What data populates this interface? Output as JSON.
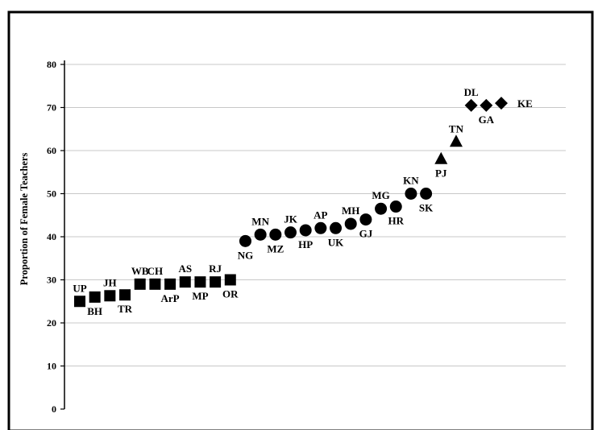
{
  "chart_data": {
    "type": "scatter",
    "title": "",
    "xlabel": "",
    "ylabel": "Proportion of Female Teachers",
    "ylim": [
      0,
      80
    ],
    "yticks": [
      0,
      10,
      20,
      30,
      40,
      50,
      60,
      70,
      80
    ],
    "grid": true,
    "legend": "none",
    "marker_color": "#000000",
    "grid_color": "#c8c8c8",
    "series": [
      {
        "marker": "square",
        "points": [
          {
            "label": "UP",
            "y": 25
          },
          {
            "label": "BH",
            "y": 26
          },
          {
            "label": "JH",
            "y": 26.3
          },
          {
            "label": "TR",
            "y": 26.5
          },
          {
            "label": "WB",
            "y": 29
          },
          {
            "label": "CH",
            "y": 29
          },
          {
            "label": "ArP",
            "y": 29
          },
          {
            "label": "AS",
            "y": 29.5
          },
          {
            "label": "MP",
            "y": 29.5
          },
          {
            "label": "RJ",
            "y": 29.5
          },
          {
            "label": "OR",
            "y": 30
          }
        ]
      },
      {
        "marker": "circle",
        "points": [
          {
            "label": "NG",
            "y": 39
          },
          {
            "label": "MN",
            "y": 40.5
          },
          {
            "label": "MZ",
            "y": 40.5
          },
          {
            "label": "JK",
            "y": 41
          },
          {
            "label": "HP",
            "y": 41.5
          },
          {
            "label": "AP",
            "y": 42
          },
          {
            "label": "UK",
            "y": 42
          },
          {
            "label": "MH",
            "y": 43
          },
          {
            "label": "GJ",
            "y": 44
          },
          {
            "label": "MG",
            "y": 46.5
          },
          {
            "label": "HR",
            "y": 47
          },
          {
            "label": "KN",
            "y": 50
          },
          {
            "label": "SK",
            "y": 50
          }
        ]
      },
      {
        "marker": "triangle",
        "points": [
          {
            "label": "PJ",
            "y": 58
          },
          {
            "label": "TN",
            "y": 62
          }
        ]
      },
      {
        "marker": "diamond",
        "points": [
          {
            "label": "DL",
            "y": 70.5
          },
          {
            "label": "GA",
            "y": 70.5
          },
          {
            "label": "KE",
            "y": 71
          }
        ]
      }
    ]
  }
}
